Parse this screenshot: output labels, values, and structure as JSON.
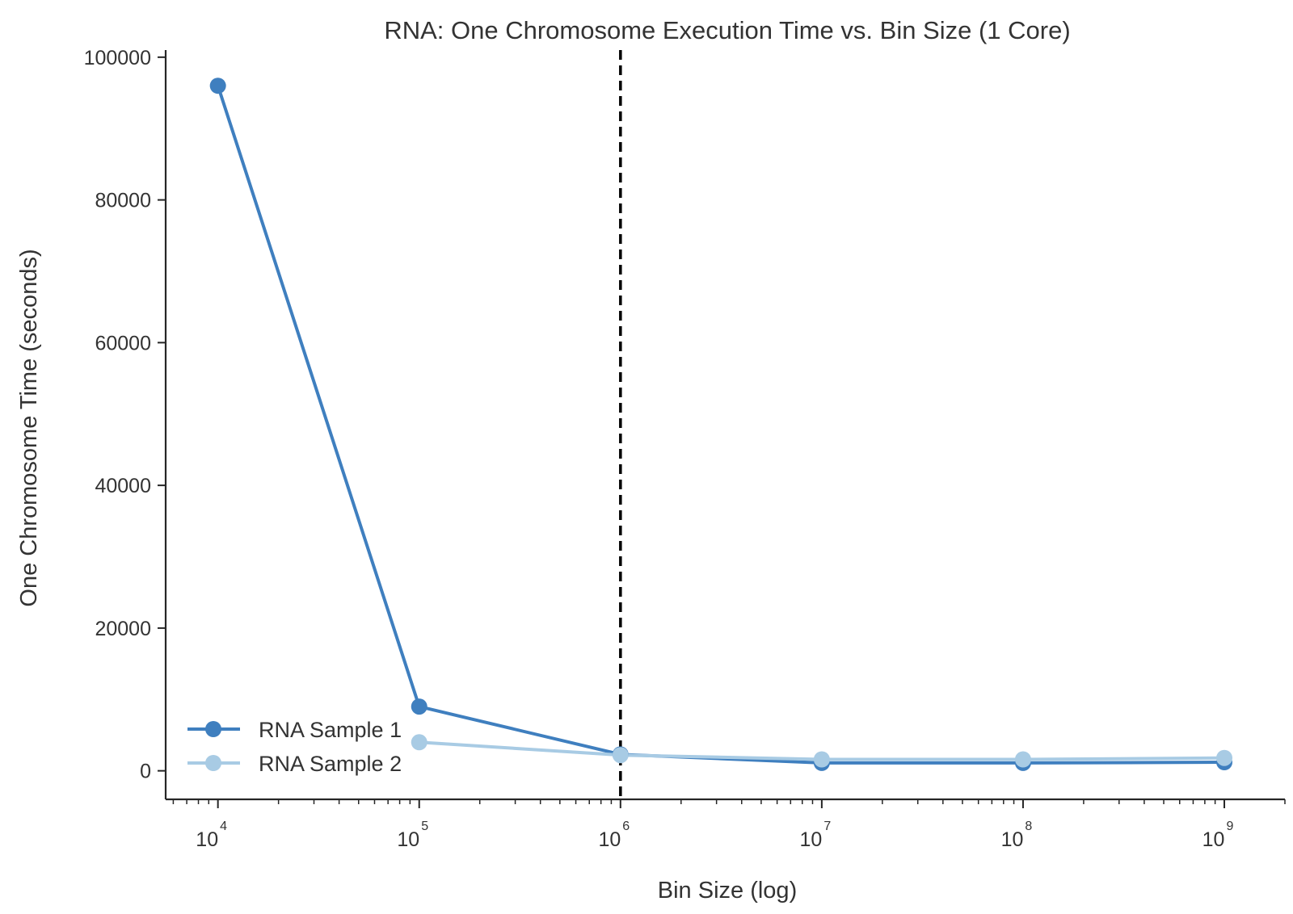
{
  "chart_data": {
    "type": "line",
    "title": "RNA: One Chromosome Execution Time vs. Bin Size (1 Core)",
    "xlabel": "Bin Size (log)",
    "ylabel": "One Chromosome Time (seconds)",
    "xscale": "log",
    "x": [
      10000,
      100000,
      1000000,
      10000000,
      100000000,
      1000000000
    ],
    "xlim": [
      5500,
      2000000000
    ],
    "ylim": [
      -4000,
      101000
    ],
    "x_ticks": [
      {
        "value": 10000,
        "base": "10",
        "exp": "4"
      },
      {
        "value": 100000,
        "base": "10",
        "exp": "5"
      },
      {
        "value": 1000000,
        "base": "10",
        "exp": "6"
      },
      {
        "value": 10000000,
        "base": "10",
        "exp": "7"
      },
      {
        "value": 100000000,
        "base": "10",
        "exp": "8"
      },
      {
        "value": 1000000000,
        "base": "10",
        "exp": "9"
      }
    ],
    "y_ticks": [
      {
        "value": 0,
        "label": "0"
      },
      {
        "value": 20000,
        "label": "20000"
      },
      {
        "value": 40000,
        "label": "40000"
      },
      {
        "value": 60000,
        "label": "60000"
      },
      {
        "value": 80000,
        "label": "80000"
      },
      {
        "value": 100000,
        "label": "100000"
      }
    ],
    "vline": {
      "x": 1000000,
      "style": "dashed",
      "color": "#000000"
    },
    "series": [
      {
        "name": "RNA Sample 1",
        "color": "#3f7fbf",
        "points": [
          [
            10000,
            96000
          ],
          [
            100000,
            9000
          ],
          [
            1000000,
            2300
          ],
          [
            10000000,
            1100
          ],
          [
            100000000,
            1100
          ],
          [
            1000000000,
            1200
          ]
        ]
      },
      {
        "name": "RNA Sample 2",
        "color": "#a8cbe4",
        "points": [
          [
            100000,
            4000
          ],
          [
            1000000,
            2200
          ],
          [
            10000000,
            1600
          ],
          [
            100000000,
            1600
          ],
          [
            1000000000,
            1800
          ]
        ]
      }
    ],
    "legend": {
      "position": "lower-left"
    },
    "grid": false
  }
}
